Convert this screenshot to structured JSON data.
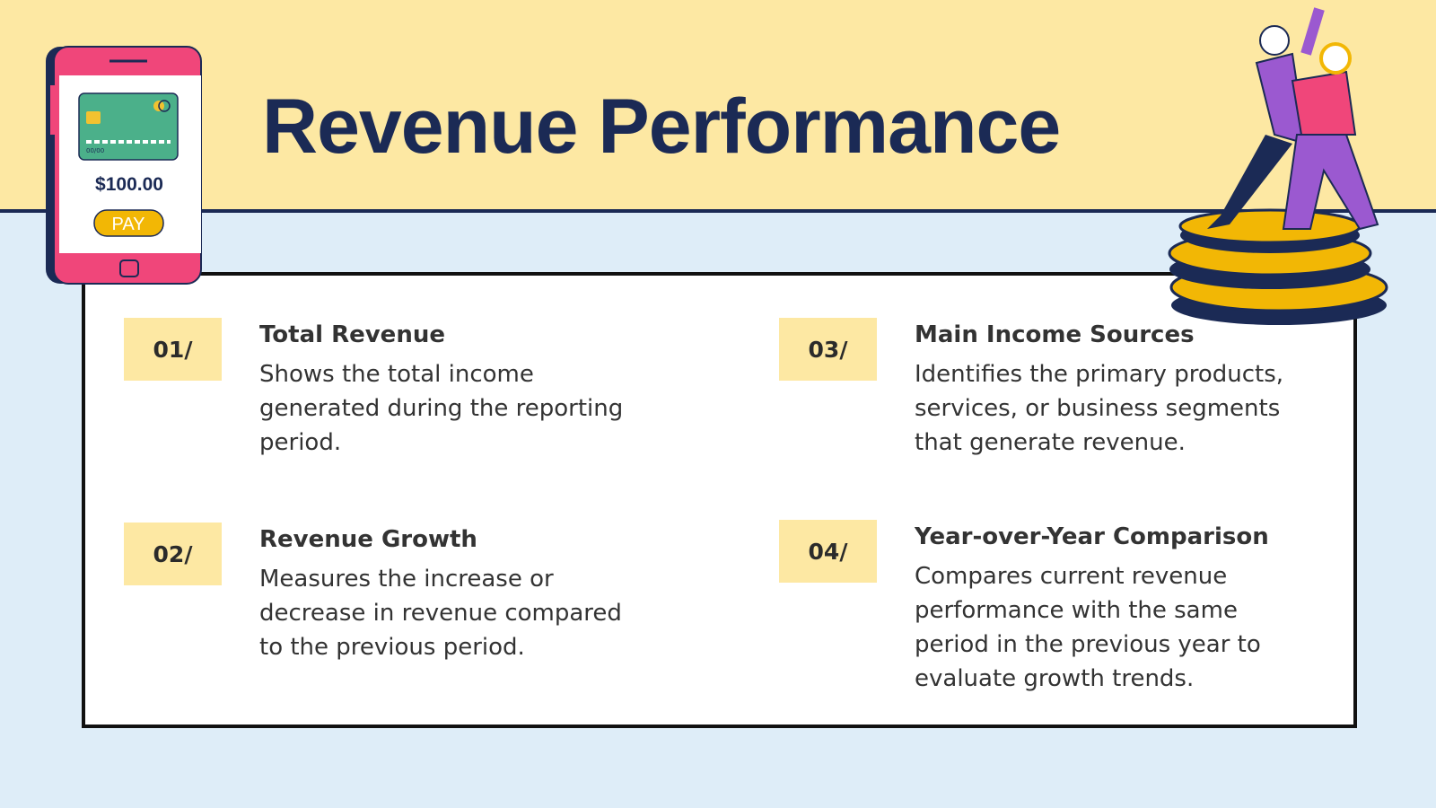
{
  "header": {
    "title": "Revenue Performance"
  },
  "phone": {
    "amount": "$100.00",
    "button": "PAY",
    "card_expiry": "00/00"
  },
  "items": [
    {
      "number": "01/",
      "heading": "Total Revenue",
      "text": "Shows the total income generated during the reporting period."
    },
    {
      "number": "02/",
      "heading": "Revenue Growth",
      "text": "Measures the increase or decrease in revenue compared to the previous period."
    },
    {
      "number": "03/",
      "heading": "Main Income Sources",
      "text": "Identifies the primary products, services, or business segments that generate revenue."
    },
    {
      "number": "04/",
      "heading": "Year-over-Year Comparison",
      "text": "Compares current revenue performance with the same period in the previous year to evaluate growth trends."
    }
  ]
}
